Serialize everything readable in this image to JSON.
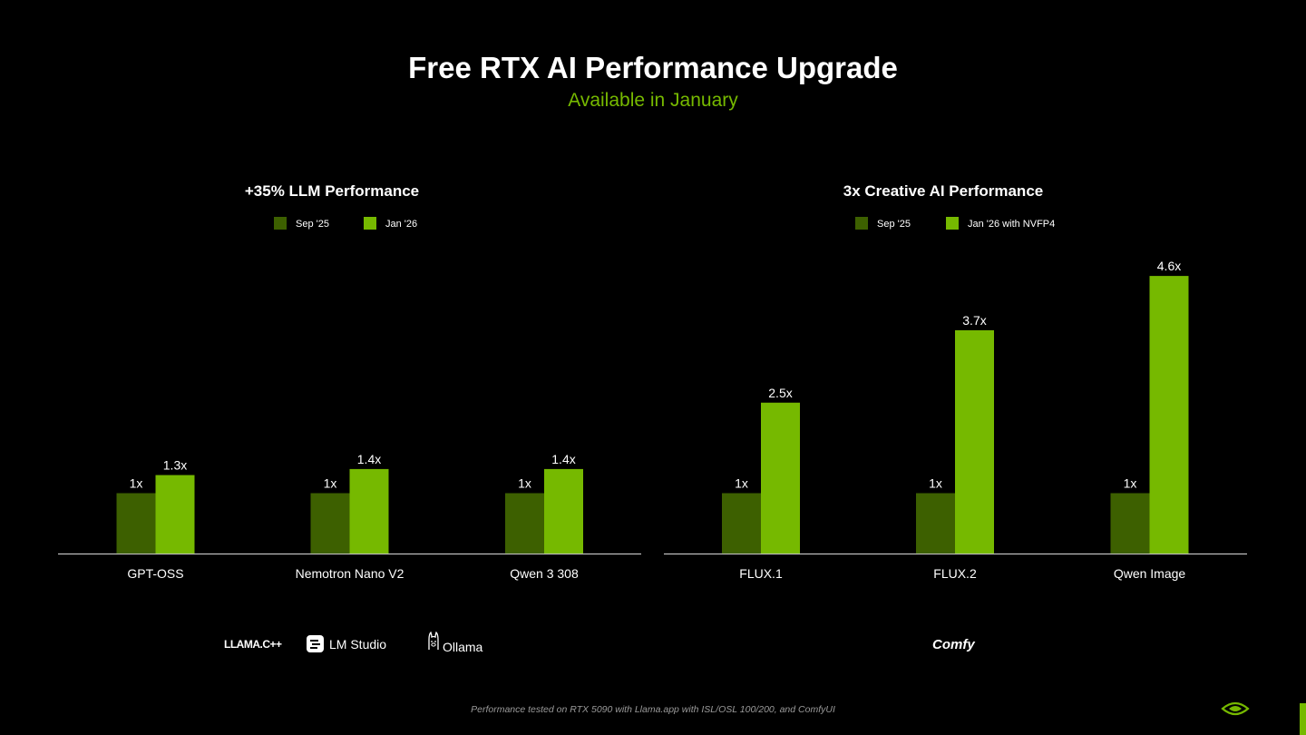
{
  "header": {
    "title": "Free RTX AI Performance Upgrade",
    "subtitle": "Available in January"
  },
  "colors": {
    "sep": "#3d6000",
    "jan": "#76b900",
    "accent": "#76b900",
    "axis": "#bfbfbf"
  },
  "chart_data": [
    {
      "type": "bar",
      "title": "+35% LLM Performance",
      "categories": [
        "GPT-OSS",
        "Nemotron Nano V2",
        "Qwen 3 308"
      ],
      "series": [
        {
          "name": "Sep '25",
          "values": [
            1,
            1,
            1
          ],
          "labels": [
            "1x",
            "1x",
            "1x"
          ]
        },
        {
          "name": "Jan '26",
          "values": [
            1.3,
            1.4,
            1.4
          ],
          "labels": [
            "1.3x",
            "1.4x",
            "1.4x"
          ]
        }
      ],
      "legend": "top-center",
      "grid": false
    },
    {
      "type": "bar",
      "title": "3x Creative AI Performance",
      "categories": [
        "FLUX.1",
        "FLUX.2",
        "Qwen Image"
      ],
      "series": [
        {
          "name": "Sep '25",
          "values": [
            1,
            1,
            1
          ],
          "labels": [
            "1x",
            "1x",
            "1x"
          ]
        },
        {
          "name": "Jan '26 with NVFP4",
          "values": [
            2.5,
            3.7,
            4.6
          ],
          "labels": [
            "2.5x",
            "3.7x",
            "4.6x"
          ]
        }
      ],
      "legend": "top-center",
      "grid": false
    }
  ],
  "logos": {
    "llama": "LLAMA.C++",
    "lmstudio": "LM Studio",
    "ollama": "Ollama",
    "comfy": "Comfy"
  },
  "icons": {
    "lmstudio": "lm-studio-icon",
    "ollama": "llama-head-icon",
    "nvidia": "nvidia-eye-icon"
  },
  "footnote": "Performance tested on RTX 5090 with Llama.app with ISL/OSL 100/200, and ComfyUI"
}
